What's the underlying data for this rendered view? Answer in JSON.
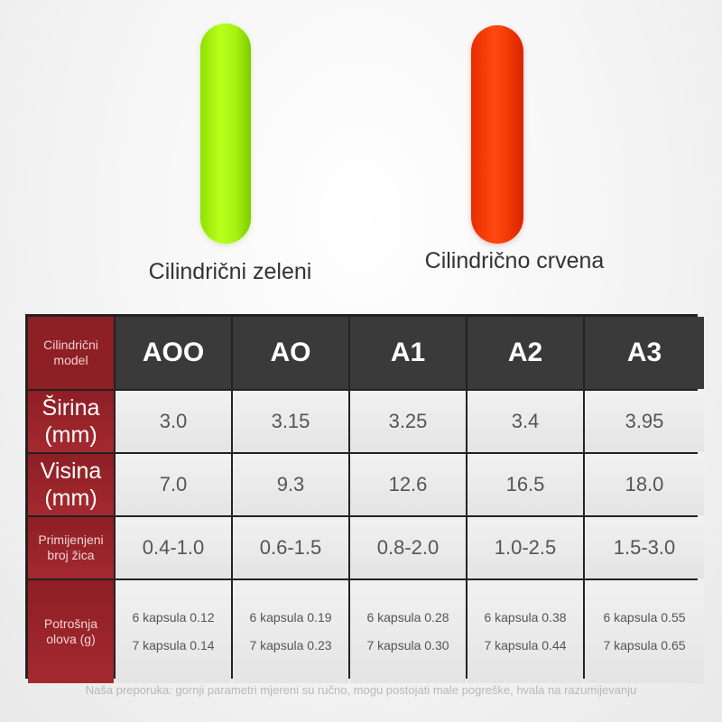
{
  "products": [
    {
      "caption": "Cilindrični zeleni",
      "color": "#b9ff1e"
    },
    {
      "caption": "Cilindrično crvena",
      "color": "#ff4a10"
    }
  ],
  "table": {
    "corner": "Cilindrični model",
    "models": [
      "AOO",
      "AO",
      "A1",
      "A2",
      "A3"
    ],
    "rows": [
      {
        "label": "Širina (mm)",
        "values": [
          "3.0",
          "3.15",
          "3.25",
          "3.4",
          "3.95"
        ]
      },
      {
        "label": "Visina (mm)",
        "values": [
          "7.0",
          "9.3",
          "12.6",
          "16.5",
          "18.0"
        ]
      },
      {
        "label": "Primijenjeni broj žica",
        "values": [
          "0.4-1.0",
          "0.6-1.5",
          "0.8-2.0",
          "1.0-2.5",
          "1.5-3.0"
        ]
      }
    ],
    "consumption": {
      "label": "Potrošnja olova (g)",
      "values": [
        {
          "six": "6 kapsula 0.12",
          "seven": "7 kapsula 0.14"
        },
        {
          "six": "6 kapsula 0.19",
          "seven": "7 kapsula 0.23"
        },
        {
          "six": "6 kapsula 0.28",
          "seven": "7 kapsula 0.30"
        },
        {
          "six": "6 kapsula 0.38",
          "seven": "7 kapsula 0.44"
        },
        {
          "six": "6 kapsula 0.55",
          "seven": "7 kapsula 0.65"
        }
      ]
    },
    "accent_color": "#9a2329",
    "header_color": "#3a3a3a"
  },
  "footnote": "Naša preporuka: gornji parametri mjereni su ručno, mogu postojati male pogreške, hvala na razumijevanju"
}
